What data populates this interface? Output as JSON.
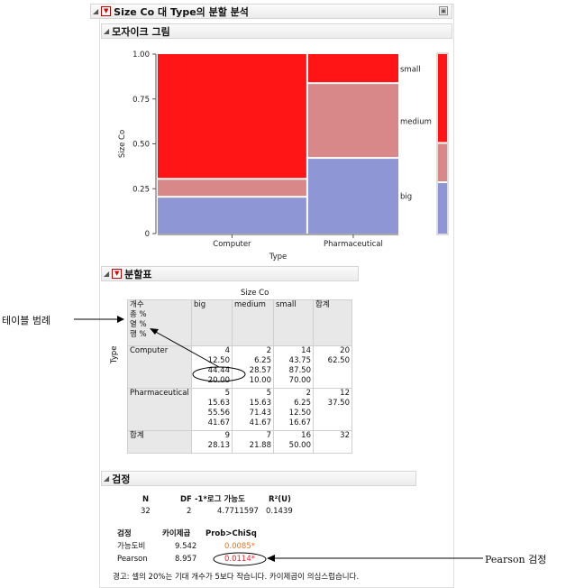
{
  "report": {
    "title": "Size Co 대 Type의 분할 분석",
    "mosaic_section": "모자이크 그림",
    "contingency_section": "분할표",
    "tests_section": "검정"
  },
  "colors": {
    "big": "#8e96d6",
    "medium": "#d88888",
    "small": "#ff1515"
  },
  "chart_data": {
    "type": "mosaic",
    "xlabel": "Type",
    "ylabel": "Size Co",
    "ylim": [
      0,
      1
    ],
    "y_ticks": [
      "0",
      "0.25",
      "0.50",
      "0.75",
      "1.00"
    ],
    "categories": [
      "Computer",
      "Pharmaceutical"
    ],
    "column_widths": [
      0.625,
      0.375
    ],
    "levels": [
      "big",
      "medium",
      "small"
    ],
    "proportions": {
      "Computer": {
        "big": 0.2,
        "medium": 0.1,
        "small": 0.7
      },
      "Pharmaceutical": {
        "big": 0.4167,
        "medium": 0.4167,
        "small": 0.1667
      }
    },
    "legend_levels": [
      "small",
      "medium",
      "big"
    ],
    "overall": {
      "big": 0.2813,
      "medium": 0.2188,
      "small": 0.5
    }
  },
  "contingency": {
    "col_var": "Size Co",
    "row_var": "Type",
    "legend": [
      "개수",
      "총 %",
      "열 %",
      "행 %"
    ],
    "columns": [
      "big",
      "medium",
      "small",
      "합계"
    ],
    "rows": [
      {
        "label": "Computer",
        "cells": [
          [
            "4",
            "12.50",
            "44.44",
            "20.00"
          ],
          [
            "2",
            "6.25",
            "28.57",
            "10.00"
          ],
          [
            "14",
            "43.75",
            "87.50",
            "70.00"
          ]
        ],
        "total": [
          "20",
          "62.50"
        ]
      },
      {
        "label": "Pharmaceutical",
        "cells": [
          [
            "5",
            "15.63",
            "55.56",
            "41.67"
          ],
          [
            "5",
            "15.63",
            "71.43",
            "41.67"
          ],
          [
            "2",
            "6.25",
            "12.50",
            "16.67"
          ]
        ],
        "total": [
          "12",
          "37.50"
        ]
      },
      {
        "label": "합계",
        "cells": [
          [
            "9",
            "28.13"
          ],
          [
            "7",
            "21.88"
          ],
          [
            "16",
            "50.00"
          ]
        ],
        "total": [
          "32"
        ]
      }
    ]
  },
  "tests": {
    "summary_headers": [
      "N",
      "DF",
      "-1*로그 가능도",
      "R²(U)"
    ],
    "summary_values": [
      "32",
      "2",
      "4.7711597",
      "0.1439"
    ],
    "chisq_headers": [
      "검정",
      "카이제곱",
      "Prob>ChiSq"
    ],
    "chisq_rows": [
      [
        "가능도비",
        "9.542",
        "0.0085*"
      ],
      [
        "Pearson",
        "8.957",
        "0.0114*"
      ]
    ],
    "warning": "경고: 셀의 20%는 기대 개수가 5보다 작습니다. 카이제곱이 의심스럽습니다."
  },
  "annotations": {
    "table_legend": "테이블 범례",
    "pearson": "Pearson 검정"
  }
}
